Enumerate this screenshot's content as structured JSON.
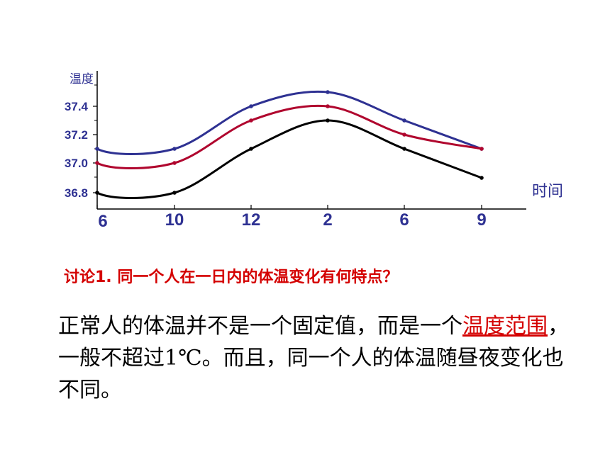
{
  "chart_data": {
    "type": "line",
    "ylabel": "温度",
    "xlabel": "时间",
    "x_categories": [
      "6",
      "10",
      "12",
      "2",
      "6",
      "9"
    ],
    "y_ticks": [
      36.8,
      37.0,
      37.2,
      37.4
    ],
    "y_tick_labels": [
      "36.8",
      "37.0",
      "37.2",
      "37.4"
    ],
    "ylim": [
      36.8,
      37.5
    ],
    "grid": false,
    "legend": "none",
    "series": [
      {
        "color": "#2e3192",
        "values": [
          37.1,
          37.1,
          37.4,
          37.5,
          37.3,
          37.1
        ]
      },
      {
        "color": "#b0062e",
        "values": [
          37.0,
          37.0,
          37.3,
          37.4,
          37.2,
          37.1
        ]
      },
      {
        "color": "#000000",
        "values": [
          36.8,
          36.8,
          37.1,
          37.3,
          37.1,
          36.9
        ]
      }
    ]
  },
  "question": "讨论1. 同一个人在一日内的体温变化有何特点？",
  "body": {
    "part1": "正常人的体温并不是一个固定值，而是一个",
    "highlight": "温度范围",
    "part2": "，一般不超过1℃。而且，同一个人的体温随昼夜变化也不同。"
  },
  "colors": {
    "axis_text": "#2e3192",
    "question": "#d40000",
    "highlight": "#d40000"
  }
}
